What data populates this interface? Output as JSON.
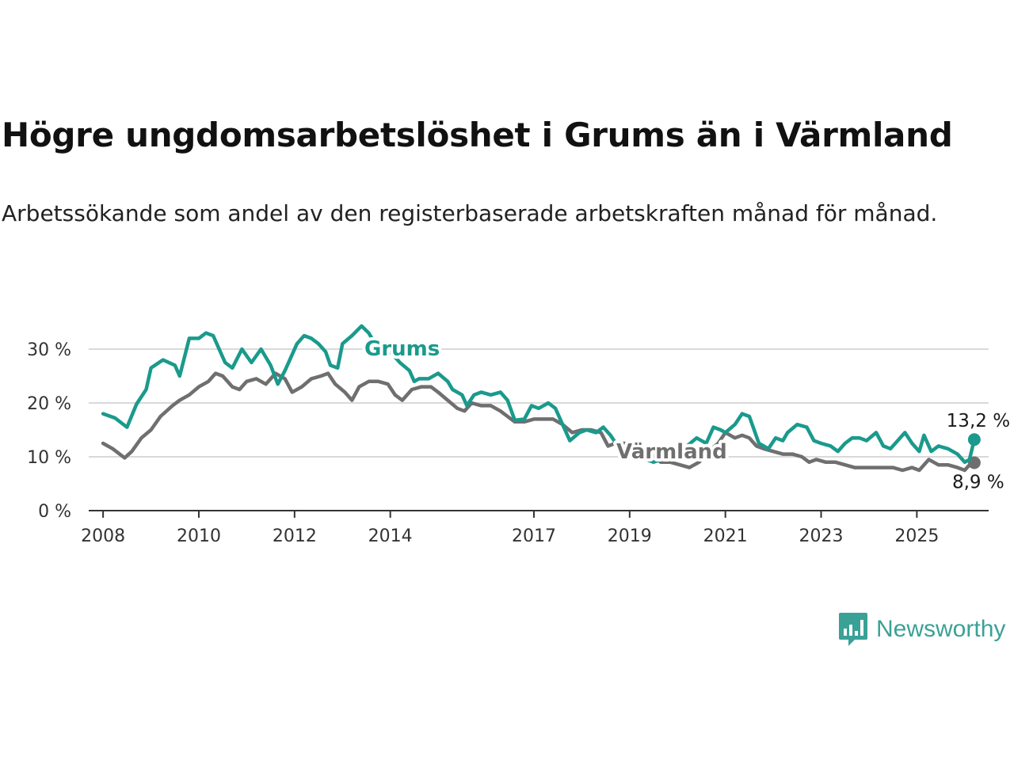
{
  "header": {
    "title": "Högre ungdomsarbetslöshet i Grums än i Värmland",
    "subtitle": "Arbetssökande som andel av den registerbaserade arbetskraften månad för månad."
  },
  "brand": {
    "name": "Newsworthy",
    "icon": "newsworthy-logo-icon",
    "color": "#3aa197"
  },
  "chart_data": {
    "type": "line",
    "title": "Högre ungdomsarbetslöshet i Grums än i Värmland",
    "subtitle": "Arbetssökande som andel av den registerbaserade arbetskraften månad för månad.",
    "xlabel": "",
    "ylabel": "",
    "xlim": [
      2007.7,
      2026.5
    ],
    "ylim": [
      0,
      35
    ],
    "y_ticks": [
      0,
      10,
      20,
      30
    ],
    "y_tick_labels": [
      "0 %",
      "10 %",
      "20 %",
      "30 %"
    ],
    "x_ticks": [
      2008,
      2010,
      2012,
      2014,
      2017,
      2019,
      2021,
      2023,
      2025
    ],
    "x_tick_labels": [
      "2008",
      "2010",
      "2012",
      "2014",
      "2017",
      "2019",
      "2021",
      "2023",
      "2025"
    ],
    "grid": true,
    "legend": "direct-labels",
    "series": [
      {
        "name": "Grums",
        "color": "#1a9a8c",
        "end_label": "13,2 %",
        "points": [
          [
            2008.0,
            18.0
          ],
          [
            2008.25,
            17.2
          ],
          [
            2008.5,
            15.5
          ],
          [
            2008.7,
            19.8
          ],
          [
            2008.9,
            22.5
          ],
          [
            2009.0,
            26.5
          ],
          [
            2009.25,
            28.0
          ],
          [
            2009.5,
            27.0
          ],
          [
            2009.6,
            25.0
          ],
          [
            2009.8,
            32.0
          ],
          [
            2010.0,
            32.0
          ],
          [
            2010.15,
            33.0
          ],
          [
            2010.3,
            32.5
          ],
          [
            2010.55,
            27.5
          ],
          [
            2010.7,
            26.5
          ],
          [
            2010.9,
            30.0
          ],
          [
            2011.1,
            27.5
          ],
          [
            2011.3,
            30.0
          ],
          [
            2011.5,
            27.0
          ],
          [
            2011.65,
            23.5
          ],
          [
            2011.8,
            26.0
          ],
          [
            2011.9,
            28.0
          ],
          [
            2012.05,
            31.0
          ],
          [
            2012.2,
            32.5
          ],
          [
            2012.35,
            32.0
          ],
          [
            2012.5,
            31.0
          ],
          [
            2012.65,
            29.5
          ],
          [
            2012.75,
            27.0
          ],
          [
            2012.9,
            26.5
          ],
          [
            2013.0,
            31.0
          ],
          [
            2013.2,
            32.5
          ],
          [
            2013.4,
            34.3
          ],
          [
            2013.55,
            33.0
          ],
          [
            2013.65,
            31.5
          ],
          [
            2014.0,
            29.5
          ],
          [
            2014.2,
            27.5
          ],
          [
            2014.4,
            26.0
          ],
          [
            2014.5,
            24.0
          ],
          [
            2014.6,
            24.5
          ],
          [
            2014.8,
            24.5
          ],
          [
            2015.0,
            25.5
          ],
          [
            2015.2,
            24.0
          ],
          [
            2015.3,
            22.5
          ],
          [
            2015.5,
            21.5
          ],
          [
            2015.6,
            19.5
          ],
          [
            2015.75,
            21.5
          ],
          [
            2015.9,
            22.0
          ],
          [
            2016.1,
            21.5
          ],
          [
            2016.3,
            22.0
          ],
          [
            2016.45,
            20.5
          ],
          [
            2016.6,
            16.8
          ],
          [
            2016.8,
            17.0
          ],
          [
            2016.95,
            19.5
          ],
          [
            2017.1,
            19.0
          ],
          [
            2017.3,
            20.0
          ],
          [
            2017.45,
            19.0
          ],
          [
            2017.6,
            16.0
          ],
          [
            2017.75,
            13.0
          ],
          [
            2017.95,
            14.5
          ],
          [
            2018.1,
            15.0
          ],
          [
            2018.3,
            14.5
          ],
          [
            2018.45,
            15.5
          ],
          [
            2018.6,
            14.0
          ],
          [
            2018.75,
            12.0
          ],
          [
            2018.95,
            10.5
          ],
          [
            2019.15,
            9.5
          ],
          [
            2019.35,
            9.5
          ],
          [
            2019.5,
            9.0
          ],
          [
            2019.65,
            9.5
          ],
          [
            2019.8,
            11.0
          ],
          [
            2020.0,
            11.5
          ],
          [
            2020.2,
            12.0
          ],
          [
            2020.4,
            13.5
          ],
          [
            2020.6,
            12.5
          ],
          [
            2020.75,
            15.5
          ],
          [
            2020.9,
            15.0
          ],
          [
            2021.0,
            14.5
          ],
          [
            2021.2,
            16.0
          ],
          [
            2021.35,
            18.0
          ],
          [
            2021.5,
            17.5
          ],
          [
            2021.7,
            12.5
          ],
          [
            2021.9,
            11.5
          ],
          [
            2022.05,
            13.5
          ],
          [
            2022.2,
            13.0
          ],
          [
            2022.3,
            14.5
          ],
          [
            2022.5,
            16.0
          ],
          [
            2022.7,
            15.5
          ],
          [
            2022.85,
            13.0
          ],
          [
            2023.0,
            12.5
          ],
          [
            2023.2,
            12.0
          ],
          [
            2023.35,
            11.0
          ],
          [
            2023.5,
            12.5
          ],
          [
            2023.65,
            13.5
          ],
          [
            2023.8,
            13.5
          ],
          [
            2023.95,
            13.0
          ],
          [
            2024.15,
            14.5
          ],
          [
            2024.3,
            12.0
          ],
          [
            2024.45,
            11.5
          ],
          [
            2024.6,
            13.0
          ],
          [
            2024.75,
            14.5
          ],
          [
            2024.9,
            12.5
          ],
          [
            2025.05,
            11.0
          ],
          [
            2025.15,
            14.0
          ],
          [
            2025.3,
            11.0
          ],
          [
            2025.45,
            12.0
          ],
          [
            2025.65,
            11.5
          ],
          [
            2025.85,
            10.5
          ],
          [
            2026.0,
            9.0
          ],
          [
            2026.1,
            9.5
          ],
          [
            2026.2,
            13.2
          ]
        ]
      },
      {
        "name": "Värmland",
        "color": "#6f6f70",
        "end_label": "8,9 %",
        "points": [
          [
            2008.0,
            12.5
          ],
          [
            2008.2,
            11.5
          ],
          [
            2008.45,
            9.8
          ],
          [
            2008.6,
            11.0
          ],
          [
            2008.8,
            13.5
          ],
          [
            2009.0,
            15.0
          ],
          [
            2009.2,
            17.5
          ],
          [
            2009.45,
            19.5
          ],
          [
            2009.6,
            20.5
          ],
          [
            2009.8,
            21.5
          ],
          [
            2010.0,
            23.0
          ],
          [
            2010.2,
            24.0
          ],
          [
            2010.35,
            25.5
          ],
          [
            2010.5,
            25.0
          ],
          [
            2010.7,
            23.0
          ],
          [
            2010.85,
            22.5
          ],
          [
            2011.0,
            24.0
          ],
          [
            2011.2,
            24.5
          ],
          [
            2011.4,
            23.5
          ],
          [
            2011.6,
            25.5
          ],
          [
            2011.8,
            24.5
          ],
          [
            2011.95,
            22.0
          ],
          [
            2012.15,
            23.0
          ],
          [
            2012.35,
            24.5
          ],
          [
            2012.55,
            25.0
          ],
          [
            2012.7,
            25.5
          ],
          [
            2012.85,
            23.5
          ],
          [
            2013.05,
            22.0
          ],
          [
            2013.2,
            20.5
          ],
          [
            2013.35,
            23.0
          ],
          [
            2013.55,
            24.0
          ],
          [
            2013.75,
            24.0
          ],
          [
            2013.95,
            23.5
          ],
          [
            2014.1,
            21.5
          ],
          [
            2014.25,
            20.5
          ],
          [
            2014.45,
            22.5
          ],
          [
            2014.65,
            23.0
          ],
          [
            2014.85,
            23.0
          ],
          [
            2015.0,
            22.0
          ],
          [
            2015.2,
            20.5
          ],
          [
            2015.4,
            19.0
          ],
          [
            2015.55,
            18.5
          ],
          [
            2015.7,
            20.0
          ],
          [
            2015.9,
            19.5
          ],
          [
            2016.1,
            19.5
          ],
          [
            2016.3,
            18.5
          ],
          [
            2016.45,
            17.5
          ],
          [
            2016.6,
            16.5
          ],
          [
            2016.8,
            16.5
          ],
          [
            2017.0,
            17.0
          ],
          [
            2017.2,
            17.0
          ],
          [
            2017.4,
            17.0
          ],
          [
            2017.6,
            16.0
          ],
          [
            2017.8,
            14.5
          ],
          [
            2018.0,
            15.0
          ],
          [
            2018.2,
            15.0
          ],
          [
            2018.4,
            14.5
          ],
          [
            2018.55,
            12.0
          ],
          [
            2018.7,
            12.5
          ],
          [
            2018.9,
            12.5
          ],
          [
            2019.1,
            12.5
          ],
          [
            2019.3,
            11.0
          ],
          [
            2019.45,
            10.5
          ],
          [
            2019.65,
            9.0
          ],
          [
            2019.85,
            9.0
          ],
          [
            2020.05,
            8.5
          ],
          [
            2020.25,
            8.0
          ],
          [
            2020.45,
            9.0
          ],
          [
            2020.65,
            11.0
          ],
          [
            2020.85,
            12.5
          ],
          [
            2021.0,
            14.5
          ],
          [
            2021.2,
            13.5
          ],
          [
            2021.35,
            14.0
          ],
          [
            2021.5,
            13.5
          ],
          [
            2021.65,
            12.0
          ],
          [
            2021.8,
            11.5
          ],
          [
            2022.0,
            11.0
          ],
          [
            2022.2,
            10.5
          ],
          [
            2022.4,
            10.5
          ],
          [
            2022.6,
            10.0
          ],
          [
            2022.75,
            9.0
          ],
          [
            2022.9,
            9.5
          ],
          [
            2023.1,
            9.0
          ],
          [
            2023.3,
            9.0
          ],
          [
            2023.5,
            8.5
          ],
          [
            2023.7,
            8.0
          ],
          [
            2023.9,
            8.0
          ],
          [
            2024.1,
            8.0
          ],
          [
            2024.3,
            8.0
          ],
          [
            2024.5,
            8.0
          ],
          [
            2024.7,
            7.5
          ],
          [
            2024.9,
            8.0
          ],
          [
            2025.05,
            7.5
          ],
          [
            2025.25,
            9.5
          ],
          [
            2025.45,
            8.5
          ],
          [
            2025.65,
            8.5
          ],
          [
            2025.85,
            8.0
          ],
          [
            2026.0,
            7.5
          ],
          [
            2026.1,
            8.5
          ],
          [
            2026.2,
            8.9
          ]
        ]
      }
    ]
  }
}
